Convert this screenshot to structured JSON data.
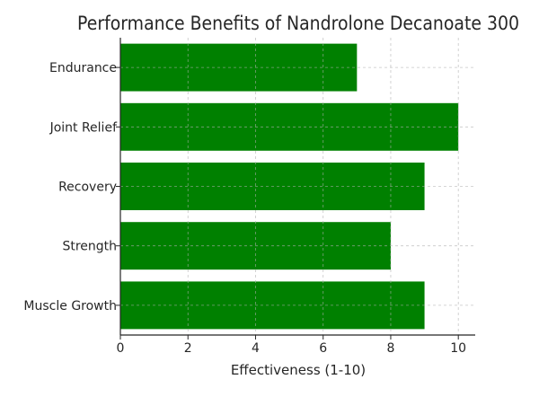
{
  "chart_data": {
    "type": "bar",
    "orientation": "horizontal",
    "title": "Performance Benefits of Nandrolone Decanoate 300",
    "xlabel": "Effectiveness (1-10)",
    "ylabel": "",
    "categories": [
      "Endurance",
      "Joint Relief",
      "Recovery",
      "Strength",
      "Muscle Growth"
    ],
    "values": [
      7,
      10,
      9,
      8,
      9
    ],
    "xlim": [
      0,
      10.5
    ],
    "xticks": [
      "0",
      "2",
      "4",
      "6",
      "8",
      "10"
    ],
    "grid": true,
    "bar_color": "#008000"
  }
}
